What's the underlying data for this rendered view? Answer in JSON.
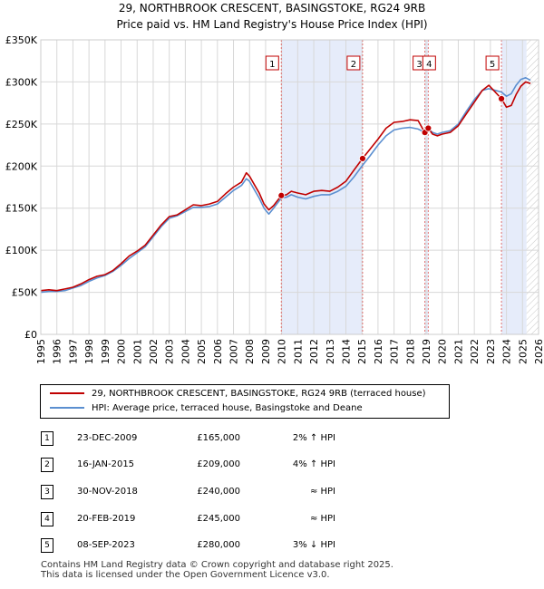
{
  "header": {
    "title": "29, NORTHBROOK CRESCENT, BASINGSTOKE, RG24 9RB",
    "subtitle": "Price paid vs. HM Land Registry's House Price Index (HPI)"
  },
  "chart_data": {
    "type": "line",
    "xlim": [
      1995,
      2026
    ],
    "ylim": [
      0,
      350000
    ],
    "y_ticks": [
      {
        "value": 0,
        "label": "£0"
      },
      {
        "value": 50000,
        "label": "£50K"
      },
      {
        "value": 100000,
        "label": "£100K"
      },
      {
        "value": 150000,
        "label": "£150K"
      },
      {
        "value": 200000,
        "label": "£200K"
      },
      {
        "value": 250000,
        "label": "£250K"
      },
      {
        "value": 300000,
        "label": "£300K"
      },
      {
        "value": 350000,
        "label": "£350K"
      }
    ],
    "x_ticks": [
      "1995",
      "1996",
      "1997",
      "1998",
      "1999",
      "2000",
      "2001",
      "2002",
      "2003",
      "2004",
      "2005",
      "2006",
      "2007",
      "2008",
      "2009",
      "2010",
      "2011",
      "2012",
      "2013",
      "2014",
      "2015",
      "2016",
      "2017",
      "2018",
      "2019",
      "2020",
      "2021",
      "2022",
      "2023",
      "2024",
      "2025",
      "2026"
    ],
    "grid": true,
    "shaded_periods": [
      [
        2009.98,
        2015.04
      ],
      [
        2018.92,
        2019.13
      ],
      [
        2023.69,
        2025.25
      ]
    ],
    "projection_start": 2025.25,
    "colors": {
      "property": "#c00000",
      "hpi": "#5b8fd0",
      "shade": "#e6ecfa",
      "grid": "#d8d8d8",
      "marker_line": "#e07070"
    },
    "series": [
      {
        "name": "property",
        "label": "29, NORTHBROOK CRESCENT, BASINGSTOKE, RG24 9RB (terraced house)",
        "points": [
          [
            1995.0,
            52000
          ],
          [
            1995.5,
            53000
          ],
          [
            1996.0,
            52000
          ],
          [
            1996.5,
            54000
          ],
          [
            1997.0,
            56000
          ],
          [
            1997.5,
            60000
          ],
          [
            1998.0,
            65000
          ],
          [
            1998.5,
            69000
          ],
          [
            1999.0,
            71000
          ],
          [
            1999.5,
            76000
          ],
          [
            2000.0,
            84000
          ],
          [
            2000.5,
            93000
          ],
          [
            2001.0,
            99000
          ],
          [
            2001.5,
            106000
          ],
          [
            2002.0,
            118000
          ],
          [
            2002.5,
            130000
          ],
          [
            2003.0,
            140000
          ],
          [
            2003.5,
            142000
          ],
          [
            2004.0,
            148000
          ],
          [
            2004.5,
            154000
          ],
          [
            2005.0,
            153000
          ],
          [
            2005.5,
            155000
          ],
          [
            2006.0,
            158000
          ],
          [
            2006.5,
            167000
          ],
          [
            2007.0,
            175000
          ],
          [
            2007.5,
            181000
          ],
          [
            2007.8,
            192000
          ],
          [
            2008.0,
            188000
          ],
          [
            2008.3,
            178000
          ],
          [
            2008.6,
            168000
          ],
          [
            2008.9,
            155000
          ],
          [
            2009.2,
            148000
          ],
          [
            2009.5,
            153000
          ],
          [
            2009.98,
            165000
          ],
          [
            2010.3,
            166000
          ],
          [
            2010.6,
            170000
          ],
          [
            2011.0,
            168000
          ],
          [
            2011.5,
            166000
          ],
          [
            2012.0,
            170000
          ],
          [
            2012.5,
            171000
          ],
          [
            2013.0,
            170000
          ],
          [
            2013.5,
            175000
          ],
          [
            2014.0,
            182000
          ],
          [
            2014.5,
            195000
          ],
          [
            2015.04,
            209000
          ],
          [
            2015.5,
            220000
          ],
          [
            2016.0,
            232000
          ],
          [
            2016.5,
            245000
          ],
          [
            2017.0,
            252000
          ],
          [
            2017.5,
            253000
          ],
          [
            2018.0,
            255000
          ],
          [
            2018.5,
            254000
          ],
          [
            2018.91,
            240000
          ],
          [
            2019.13,
            245000
          ],
          [
            2019.4,
            238000
          ],
          [
            2019.7,
            236000
          ],
          [
            2020.0,
            238000
          ],
          [
            2020.5,
            240000
          ],
          [
            2021.0,
            248000
          ],
          [
            2021.5,
            262000
          ],
          [
            2022.0,
            276000
          ],
          [
            2022.5,
            290000
          ],
          [
            2022.9,
            296000
          ],
          [
            2023.3,
            288000
          ],
          [
            2023.69,
            280000
          ],
          [
            2024.0,
            270000
          ],
          [
            2024.3,
            272000
          ],
          [
            2024.6,
            285000
          ],
          [
            2024.9,
            295000
          ],
          [
            2025.2,
            300000
          ],
          [
            2025.5,
            298000
          ]
        ]
      },
      {
        "name": "hpi",
        "label": "HPI: Average price, terraced house, Basingstoke and Deane",
        "points": [
          [
            1995.0,
            50000
          ],
          [
            1995.5,
            51000
          ],
          [
            1996.0,
            51000
          ],
          [
            1996.5,
            52000
          ],
          [
            1997.0,
            55000
          ],
          [
            1997.5,
            58000
          ],
          [
            1998.0,
            63000
          ],
          [
            1998.5,
            67000
          ],
          [
            1999.0,
            70000
          ],
          [
            1999.5,
            75000
          ],
          [
            2000.0,
            82000
          ],
          [
            2000.5,
            90000
          ],
          [
            2001.0,
            97000
          ],
          [
            2001.5,
            104000
          ],
          [
            2002.0,
            116000
          ],
          [
            2002.5,
            128000
          ],
          [
            2003.0,
            138000
          ],
          [
            2003.5,
            141000
          ],
          [
            2004.0,
            146000
          ],
          [
            2004.5,
            151000
          ],
          [
            2005.0,
            151000
          ],
          [
            2005.5,
            152000
          ],
          [
            2006.0,
            155000
          ],
          [
            2006.5,
            163000
          ],
          [
            2007.0,
            171000
          ],
          [
            2007.5,
            177000
          ],
          [
            2007.8,
            185000
          ],
          [
            2008.0,
            182000
          ],
          [
            2008.3,
            172000
          ],
          [
            2008.6,
            162000
          ],
          [
            2008.9,
            150000
          ],
          [
            2009.2,
            143000
          ],
          [
            2009.5,
            150000
          ],
          [
            2009.98,
            162000
          ],
          [
            2010.3,
            163000
          ],
          [
            2010.6,
            166000
          ],
          [
            2011.0,
            163000
          ],
          [
            2011.5,
            161000
          ],
          [
            2012.0,
            164000
          ],
          [
            2012.5,
            166000
          ],
          [
            2013.0,
            166000
          ],
          [
            2013.5,
            170000
          ],
          [
            2014.0,
            176000
          ],
          [
            2014.5,
            187000
          ],
          [
            2015.04,
            201000
          ],
          [
            2015.5,
            212000
          ],
          [
            2016.0,
            225000
          ],
          [
            2016.5,
            236000
          ],
          [
            2017.0,
            243000
          ],
          [
            2017.5,
            245000
          ],
          [
            2018.0,
            246000
          ],
          [
            2018.5,
            244000
          ],
          [
            2018.91,
            240000
          ],
          [
            2019.13,
            244000
          ],
          [
            2019.4,
            240000
          ],
          [
            2019.7,
            238000
          ],
          [
            2020.0,
            240000
          ],
          [
            2020.5,
            242000
          ],
          [
            2021.0,
            250000
          ],
          [
            2021.5,
            265000
          ],
          [
            2022.0,
            279000
          ],
          [
            2022.5,
            290000
          ],
          [
            2022.9,
            292000
          ],
          [
            2023.3,
            290000
          ],
          [
            2023.69,
            288000
          ],
          [
            2024.0,
            283000
          ],
          [
            2024.3,
            286000
          ],
          [
            2024.6,
            296000
          ],
          [
            2024.9,
            303000
          ],
          [
            2025.2,
            305000
          ],
          [
            2025.5,
            302000
          ]
        ]
      }
    ],
    "sale_markers": [
      {
        "id": "1",
        "x": 2009.98,
        "price": 165000
      },
      {
        "id": "2",
        "x": 2015.04,
        "price": 209000
      },
      {
        "id": "3",
        "x": 2018.92,
        "price": 240000
      },
      {
        "id": "4",
        "x": 2019.13,
        "price": 245000
      },
      {
        "id": "5",
        "x": 2023.69,
        "price": 280000
      }
    ]
  },
  "legend": {
    "property_label": "29, NORTHBROOK CRESCENT, BASINGSTOKE, RG24 9RB (terraced house)",
    "hpi_label": "HPI: Average price, terraced house, Basingstoke and Deane"
  },
  "transactions": [
    {
      "num": "1",
      "date": "23-DEC-2009",
      "price": "£165,000",
      "hpi": "2% ↑ HPI"
    },
    {
      "num": "2",
      "date": "16-JAN-2015",
      "price": "£209,000",
      "hpi": "4% ↑ HPI"
    },
    {
      "num": "3",
      "date": "30-NOV-2018",
      "price": "£240,000",
      "hpi": "≈ HPI"
    },
    {
      "num": "4",
      "date": "20-FEB-2019",
      "price": "£245,000",
      "hpi": "≈ HPI"
    },
    {
      "num": "5",
      "date": "08-SEP-2023",
      "price": "£280,000",
      "hpi": "3% ↓ HPI"
    }
  ],
  "footer": {
    "line1": "Contains HM Land Registry data © Crown copyright and database right 2025.",
    "line2": "This data is licensed under the Open Government Licence v3.0."
  }
}
